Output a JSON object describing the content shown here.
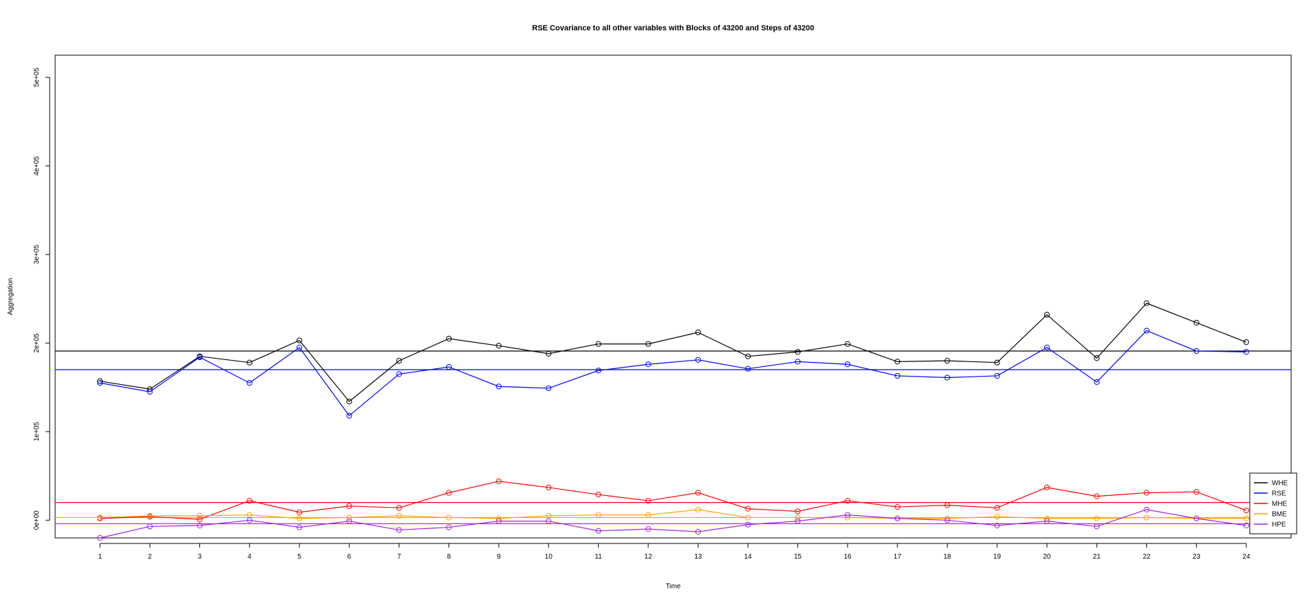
{
  "chart_data": {
    "type": "line",
    "title": "RSE Covariance to all other variables with Blocks of 43200 and Steps of 43200",
    "xlabel": "Time",
    "ylabel": "Aggregation",
    "x": [
      1,
      2,
      3,
      4,
      5,
      6,
      7,
      8,
      9,
      10,
      11,
      12,
      13,
      14,
      15,
      16,
      17,
      18,
      19,
      20,
      21,
      22,
      23,
      24
    ],
    "xlim": [
      0.1,
      24.9
    ],
    "ylim": [
      -20000,
      525000
    ],
    "y_ticks": [
      0,
      100000,
      200000,
      300000,
      400000,
      500000
    ],
    "y_tick_labels": [
      "0e+00",
      "1e+05",
      "2e+05",
      "3e+05",
      "4e+05",
      "5e+05"
    ],
    "x_tick_labels": [
      "1",
      "2",
      "3",
      "4",
      "5",
      "6",
      "7",
      "8",
      "9",
      "10",
      "11",
      "12",
      "13",
      "14",
      "15",
      "16",
      "17",
      "18",
      "19",
      "20",
      "21",
      "22",
      "23",
      "24"
    ],
    "grid": false,
    "legend_position": "bottom-right",
    "series": [
      {
        "name": "WHE",
        "color": "#000000",
        "mean": 191000,
        "values": [
          157000,
          148000,
          185000,
          178000,
          203000,
          134000,
          180000,
          205000,
          197000,
          188000,
          199000,
          199000,
          212000,
          185000,
          190000,
          199000,
          179000,
          180000,
          178000,
          232000,
          183000,
          245000,
          223000,
          201000
        ]
      },
      {
        "name": "RSE",
        "color": "#0000ff",
        "mean": 170000,
        "values": [
          155000,
          145000,
          184000,
          155000,
          195000,
          118000,
          165000,
          173000,
          151000,
          149000,
          169000,
          176000,
          181000,
          171000,
          179000,
          176000,
          163000,
          161000,
          163000,
          195000,
          156000,
          214000,
          191000,
          190000
        ]
      },
      {
        "name": "MHE",
        "color": "#ff0000",
        "mean": 20000,
        "values": [
          2000,
          4000,
          1000,
          22000,
          9000,
          16000,
          14000,
          31000,
          44000,
          37000,
          29000,
          22000,
          31000,
          13000,
          10000,
          22000,
          15000,
          17000,
          14000,
          37000,
          27000,
          31000,
          32000,
          11000
        ]
      },
      {
        "name": "BME",
        "color": "#ffa500",
        "mean": 3000,
        "values": [
          3000,
          5000,
          5000,
          6000,
          2000,
          3000,
          5000,
          3000,
          2000,
          5000,
          6000,
          6000,
          12000,
          3000,
          3000,
          3000,
          2000,
          2000,
          4000,
          2000,
          2000,
          3000,
          2000,
          2000
        ]
      },
      {
        "name": "HPE",
        "color": "#a020f0",
        "mean": -4000,
        "values": [
          -20000,
          -7000,
          -6000,
          0,
          -8000,
          -1000,
          -11000,
          -8000,
          -1000,
          -1000,
          -12000,
          -10000,
          -13000,
          -5000,
          -1000,
          6000,
          2000,
          0,
          -6000,
          -1000,
          -7000,
          12000,
          2000,
          -6000
        ]
      }
    ]
  }
}
